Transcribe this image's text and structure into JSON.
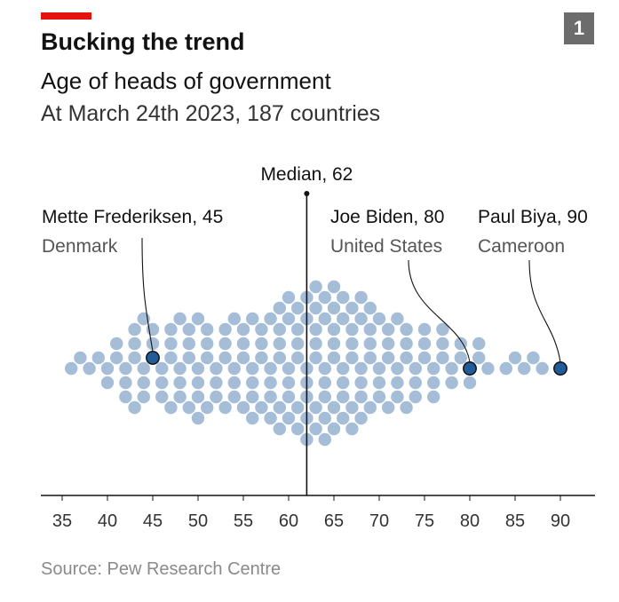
{
  "badge": "1",
  "title": "Bucking the trend",
  "subtitle": "Age of heads of government",
  "subsubtitle": "At March 24th 2023, 187 countries",
  "source": "Source: Pew Research Centre",
  "colors": {
    "accent": "#e3120b",
    "dot": "#a6bdd7",
    "highlight": "#1f5c99",
    "text": "#121212"
  },
  "chart_data": {
    "type": "scatter",
    "subtype": "beeswarm",
    "xlim": [
      34,
      94
    ],
    "ticks": [
      35,
      40,
      45,
      50,
      55,
      60,
      65,
      70,
      75,
      80,
      85,
      90
    ],
    "median": {
      "value": 62,
      "label": "Median, 62"
    },
    "highlights": [
      {
        "name": "Mette Frederiksen, 45",
        "country": "Denmark",
        "age": 45
      },
      {
        "name": "Joe Biden, 80",
        "country": "United States",
        "age": 80
      },
      {
        "name": "Paul Biya, 90",
        "country": "Cameroon",
        "age": 90
      }
    ],
    "ages": [
      36,
      37,
      38,
      39,
      40,
      40,
      41,
      41,
      42,
      42,
      42,
      43,
      43,
      43,
      43,
      44,
      44,
      44,
      44,
      45,
      45,
      45,
      46,
      46,
      46,
      47,
      47,
      47,
      47,
      48,
      48,
      48,
      48,
      49,
      49,
      49,
      49,
      50,
      50,
      50,
      50,
      50,
      51,
      51,
      51,
      51,
      52,
      52,
      52,
      53,
      53,
      53,
      53,
      54,
      54,
      54,
      54,
      55,
      55,
      55,
      55,
      56,
      56,
      56,
      56,
      56,
      57,
      57,
      57,
      57,
      58,
      58,
      58,
      58,
      58,
      59,
      59,
      59,
      59,
      59,
      59,
      60,
      60,
      60,
      60,
      60,
      60,
      61,
      61,
      61,
      61,
      61,
      61,
      62,
      62,
      62,
      62,
      62,
      62,
      62,
      63,
      63,
      63,
      63,
      63,
      63,
      63,
      64,
      64,
      64,
      64,
      64,
      64,
      64,
      65,
      65,
      65,
      65,
      65,
      65,
      65,
      66,
      66,
      66,
      66,
      66,
      66,
      67,
      67,
      67,
      67,
      67,
      67,
      68,
      68,
      68,
      68,
      68,
      68,
      69,
      69,
      69,
      69,
      69,
      70,
      70,
      70,
      70,
      71,
      71,
      71,
      71,
      72,
      72,
      72,
      72,
      73,
      73,
      73,
      73,
      74,
      74,
      74,
      75,
      75,
      75,
      76,
      76,
      76,
      77,
      77,
      77,
      78,
      78,
      79,
      79,
      80,
      80,
      81,
      81,
      82,
      84,
      85,
      86,
      87,
      88,
      90
    ]
  }
}
